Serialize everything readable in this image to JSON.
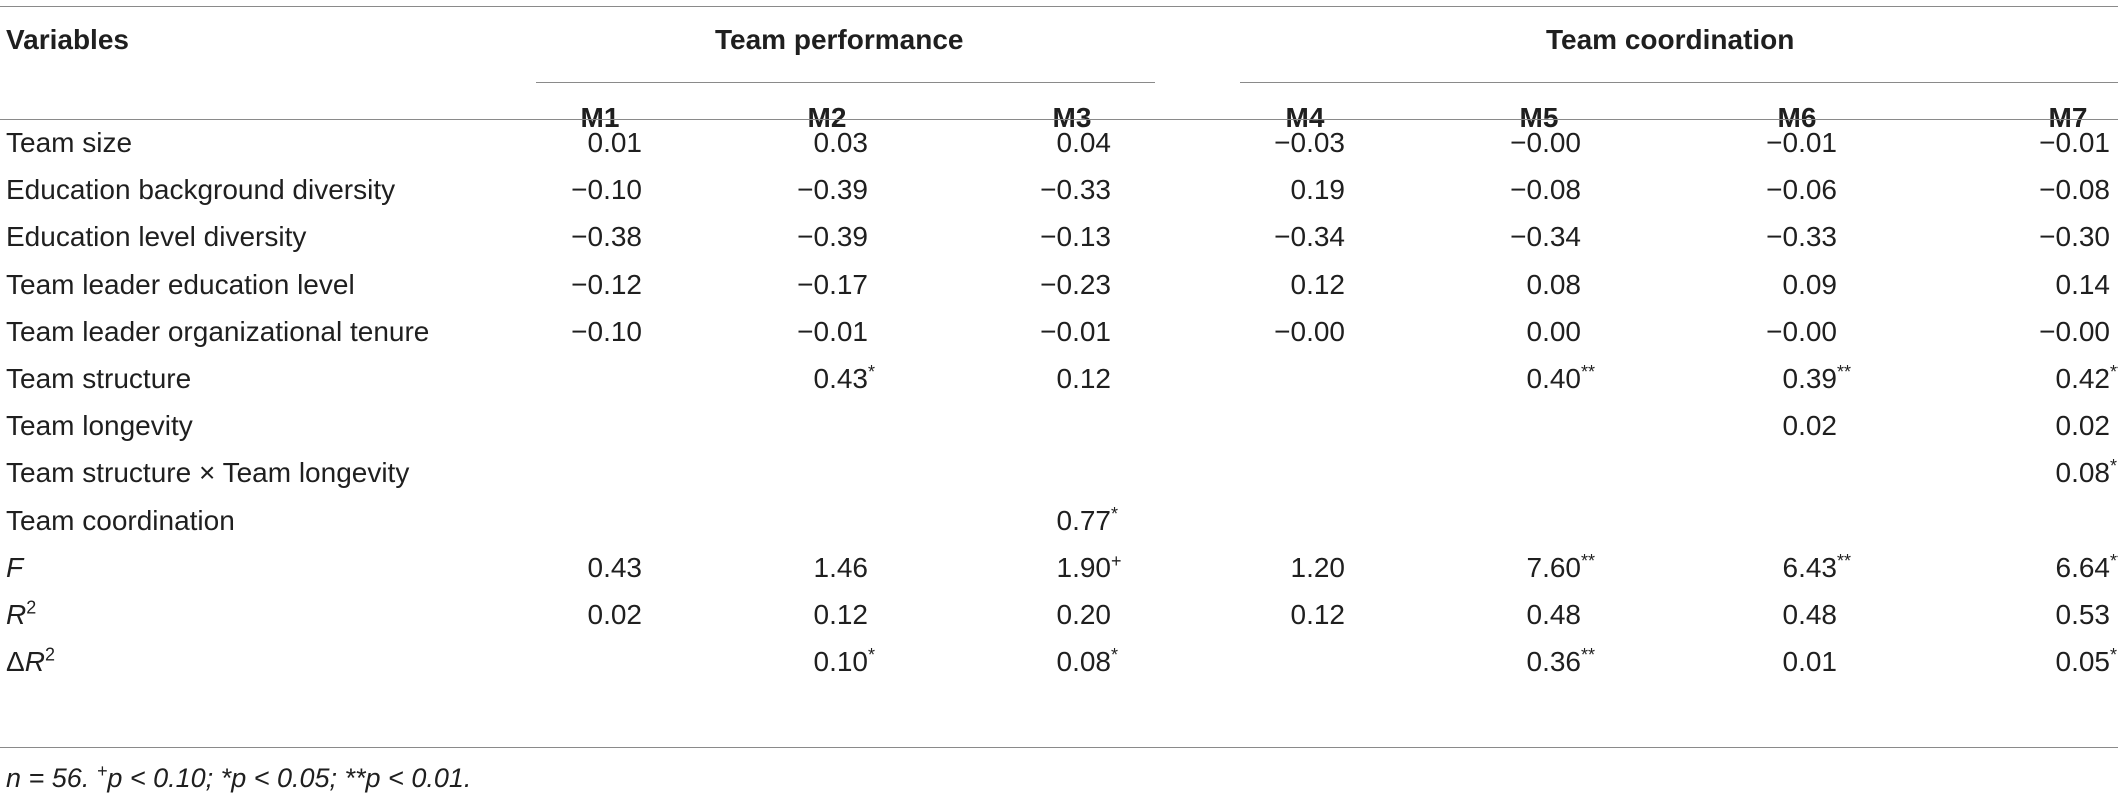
{
  "table": {
    "header": {
      "variables": "Variables",
      "group1": "Team performance",
      "group2": "Team coordination",
      "models": [
        "M1",
        "M2",
        "M3",
        "M4",
        "M5",
        "M6",
        "M7"
      ]
    },
    "rows": [
      {
        "label": "Team size",
        "cells": [
          [
            "0.01",
            ""
          ],
          [
            "0.03",
            ""
          ],
          [
            "0.04",
            ""
          ],
          [
            "−0.03",
            ""
          ],
          [
            "−0.00",
            ""
          ],
          [
            "−0.01",
            ""
          ],
          [
            "−0.01",
            ""
          ]
        ]
      },
      {
        "label": "Education background diversity",
        "cells": [
          [
            "−0.10",
            ""
          ],
          [
            "−0.39",
            ""
          ],
          [
            "−0.33",
            ""
          ],
          [
            "0.19",
            ""
          ],
          [
            "−0.08",
            ""
          ],
          [
            "−0.06",
            ""
          ],
          [
            "−0.08",
            ""
          ]
        ]
      },
      {
        "label": "Education level diversity",
        "cells": [
          [
            "−0.38",
            ""
          ],
          [
            "−0.39",
            ""
          ],
          [
            "−0.13",
            ""
          ],
          [
            "−0.34",
            ""
          ],
          [
            "−0.34",
            ""
          ],
          [
            "−0.33",
            ""
          ],
          [
            "−0.30",
            ""
          ]
        ]
      },
      {
        "label": "Team leader education level",
        "cells": [
          [
            "−0.12",
            ""
          ],
          [
            "−0.17",
            ""
          ],
          [
            "−0.23",
            ""
          ],
          [
            "0.12",
            ""
          ],
          [
            "0.08",
            ""
          ],
          [
            "0.09",
            ""
          ],
          [
            "0.14",
            ""
          ]
        ]
      },
      {
        "label": "Team leader organizational tenure",
        "cells": [
          [
            "−0.10",
            ""
          ],
          [
            "−0.01",
            ""
          ],
          [
            "−0.01",
            ""
          ],
          [
            "−0.00",
            ""
          ],
          [
            "0.00",
            ""
          ],
          [
            "−0.00",
            ""
          ],
          [
            "−0.00",
            ""
          ]
        ]
      },
      {
        "label": "Team structure",
        "cells": [
          [
            "",
            ""
          ],
          [
            "0.43",
            "*"
          ],
          [
            "0.12",
            ""
          ],
          [
            "",
            ""
          ],
          [
            "0.40",
            "**"
          ],
          [
            "0.39",
            "**"
          ],
          [
            "0.42",
            "**"
          ]
        ]
      },
      {
        "label": "Team longevity",
        "cells": [
          [
            "",
            ""
          ],
          [
            "",
            ""
          ],
          [
            "",
            ""
          ],
          [
            "",
            ""
          ],
          [
            "",
            ""
          ],
          [
            "0.02",
            ""
          ],
          [
            "0.02",
            ""
          ]
        ]
      },
      {
        "label": "Team structure × Team longevity",
        "cells": [
          [
            "",
            ""
          ],
          [
            "",
            ""
          ],
          [
            "",
            ""
          ],
          [
            "",
            ""
          ],
          [
            "",
            ""
          ],
          [
            "",
            ""
          ],
          [
            "0.08",
            "*"
          ]
        ]
      },
      {
        "label": "Team coordination",
        "cells": [
          [
            "",
            ""
          ],
          [
            "",
            ""
          ],
          [
            "0.77",
            "*"
          ],
          [
            "",
            ""
          ],
          [
            "",
            ""
          ],
          [
            "",
            ""
          ],
          [
            "",
            ""
          ]
        ]
      },
      {
        "label_italic": "F",
        "cells": [
          [
            "0.43",
            ""
          ],
          [
            "1.46",
            ""
          ],
          [
            "1.90",
            "+"
          ],
          [
            "1.20",
            ""
          ],
          [
            "7.60",
            "**"
          ],
          [
            "6.43",
            "**"
          ],
          [
            "6.64",
            "**"
          ]
        ]
      },
      {
        "label_italic": "R",
        "label_sup": "2",
        "cells": [
          [
            "0.02",
            ""
          ],
          [
            "0.12",
            ""
          ],
          [
            "0.20",
            ""
          ],
          [
            "0.12",
            ""
          ],
          [
            "0.48",
            ""
          ],
          [
            "0.48",
            ""
          ],
          [
            "0.53",
            ""
          ]
        ]
      },
      {
        "label_prefix": "Δ",
        "label_italic": "R",
        "label_sup": "2",
        "cells": [
          [
            "",
            ""
          ],
          [
            "0.10",
            "*"
          ],
          [
            "0.08",
            "*"
          ],
          [
            "",
            ""
          ],
          [
            "0.36",
            "**"
          ],
          [
            "0.01",
            ""
          ],
          [
            "0.05",
            "*"
          ]
        ]
      }
    ],
    "note": {
      "part1": "n = 56. ",
      "sup_plus": "+",
      "part2": "p < 0.10; *p < 0.05; **p < 0.01."
    }
  }
}
